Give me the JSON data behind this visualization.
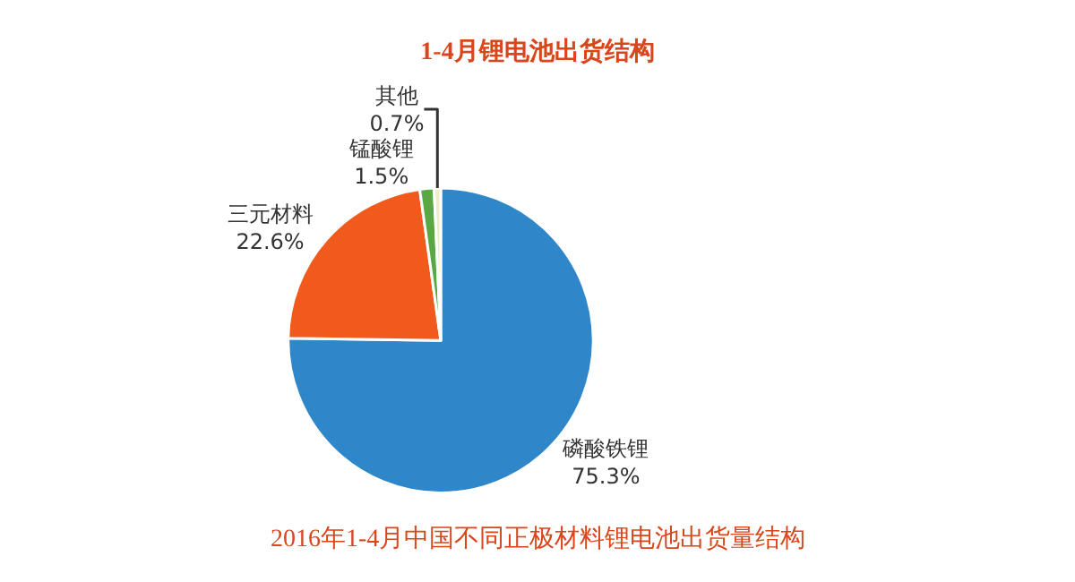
{
  "chart_data": {
    "type": "pie",
    "title": "1-4月锂电池出货结构",
    "categories": [
      "磷酸铁锂",
      "三元材料",
      "锰酸锂",
      "其他"
    ],
    "values": [
      75.3,
      22.6,
      1.5,
      0.7
    ],
    "value_labels": [
      "75.3%",
      "22.6%",
      "1.5%",
      "0.7%"
    ],
    "colors": [
      "#2f86c8",
      "#f25a1d",
      "#5aa843",
      "#f2ecc0"
    ],
    "annotations": [
      "2016年1-4月中国不同正极材料锂电池出货量结构"
    ],
    "legend": false
  }
}
